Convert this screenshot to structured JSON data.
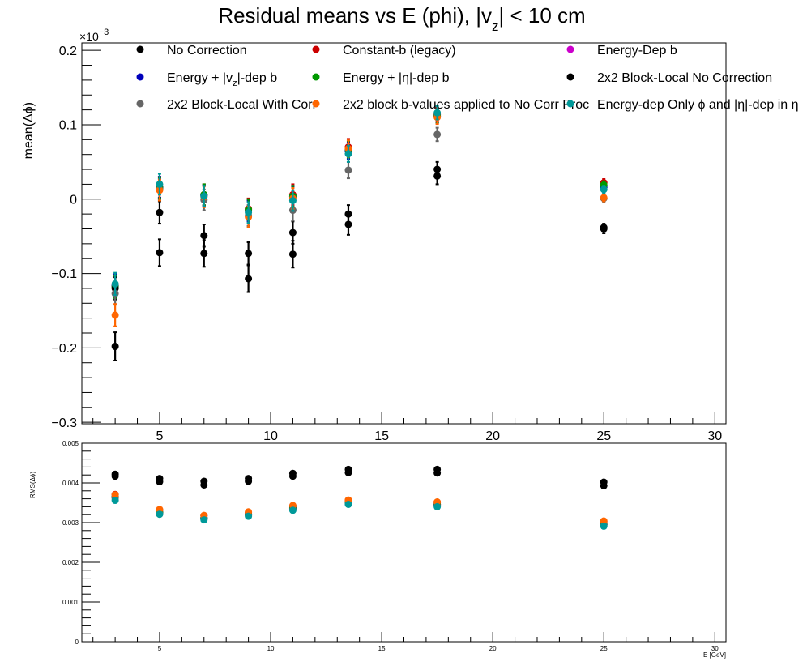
{
  "chart_data": [
    {
      "type": "scatter",
      "title": "Residual means vs E (phi), |v_z| < 10 cm",
      "title_parts": {
        "pre": "Residual means vs E (phi), |v",
        "sub": "z",
        "post": "| < 10 cm"
      },
      "ylabel": "mean(Δϕ)",
      "y_multiplier": "×10",
      "y_multiplier_exp": "−3",
      "xlim": [
        1.5,
        30.5
      ],
      "ylim": [
        -0.302,
        0.21
      ],
      "xticks": [
        5,
        10,
        15,
        20,
        25,
        30
      ],
      "yticks": [
        {
          "v": 0.2,
          "label": "0.2"
        },
        {
          "v": 0.1,
          "label": "0.1"
        },
        {
          "v": 0.0,
          "label": "0"
        },
        {
          "v": -0.1,
          "label": "−0.1"
        },
        {
          "v": -0.2,
          "label": "−0.2"
        },
        {
          "v": -0.3,
          "label": "−0.3"
        }
      ],
      "grid": false,
      "legend_placement": "top",
      "x": [
        3,
        5,
        7,
        9,
        11,
        13.5,
        17.5,
        25
      ],
      "series": [
        {
          "name": "No Correction",
          "color": "#000000",
          "values": [
            -0.198,
            -0.072,
            -0.073,
            -0.107,
            -0.074,
            -0.034,
            0.031,
            -0.04
          ],
          "err": [
            0.019,
            0.018,
            0.018,
            0.018,
            0.018,
            0.014,
            0.011,
            0.006
          ]
        },
        {
          "name": "Constant-b (legacy)",
          "color": "#cc0000",
          "values": [
            -0.117,
            0.016,
            0.006,
            -0.013,
            0.006,
            0.07,
            0.114,
            0.022
          ],
          "err": [
            0.015,
            0.014,
            0.014,
            0.014,
            0.014,
            0.011,
            0.009,
            0.005
          ]
        },
        {
          "name": "Energy-Dep b",
          "color": "#cc00cc",
          "values": [
            -0.117,
            0.014,
            0.005,
            -0.015,
            0.004,
            0.066,
            0.112,
            0.018
          ],
          "err": [
            0.015,
            0.014,
            0.014,
            0.014,
            0.014,
            0.011,
            0.009,
            0.005
          ]
        },
        {
          "name": "Energy + |v_z|-dep b",
          "name_parts": {
            "pre": "Energy + |v",
            "sub": "z",
            "post": "|-dep b"
          },
          "color": "#0000bb",
          "values": [
            -0.116,
            0.016,
            0.005,
            -0.016,
            0.003,
            0.065,
            0.111,
            0.016
          ],
          "err": [
            0.015,
            0.014,
            0.014,
            0.014,
            0.014,
            0.011,
            0.009,
            0.005
          ]
        },
        {
          "name": "Energy + |η|-dep b",
          "color": "#009900",
          "values": [
            -0.118,
            0.015,
            0.006,
            -0.014,
            0.004,
            0.067,
            0.112,
            0.019
          ],
          "err": [
            0.015,
            0.014,
            0.014,
            0.014,
            0.014,
            0.011,
            0.009,
            0.005
          ]
        },
        {
          "name": "2x2 Block-Local No Correction",
          "color": "#000000",
          "values": [
            -0.12,
            -0.018,
            -0.049,
            -0.073,
            -0.045,
            -0.02,
            0.04,
            -0.038
          ],
          "err": [
            0.015,
            0.015,
            0.015,
            0.015,
            0.015,
            0.012,
            0.01,
            0.005
          ]
        },
        {
          "name": "2x2 Block-Local With Corr",
          "color": "#666666",
          "values": [
            -0.127,
            0.013,
            -0.001,
            -0.022,
            -0.015,
            0.039,
            0.087,
            0.001
          ],
          "err": [
            0.015,
            0.014,
            0.014,
            0.014,
            0.014,
            0.011,
            0.009,
            0.005
          ]
        },
        {
          "name": "2x2 block b-values applied to No Corr Proc",
          "color": "#ff6600",
          "values": [
            -0.156,
            0.012,
            0.003,
            -0.024,
            0.001,
            0.068,
            0.11,
            0.002
          ],
          "err": [
            0.015,
            0.014,
            0.014,
            0.014,
            0.014,
            0.011,
            0.009,
            0.005
          ]
        },
        {
          "name": "Energy-dep Only ϕ and |η|-dep in η",
          "color": "#009999",
          "values": [
            -0.114,
            0.02,
            0.004,
            -0.018,
            -0.002,
            0.061,
            0.116,
            0.013
          ],
          "err": [
            0.015,
            0.014,
            0.014,
            0.014,
            0.014,
            0.011,
            0.009,
            0.005
          ]
        }
      ]
    },
    {
      "type": "scatter",
      "ylabel": "RMS(Δϕ)",
      "xlabel": "E [GeV]",
      "xlim": [
        1.5,
        30.5
      ],
      "ylim": [
        0,
        0.005
      ],
      "xticks": [
        5,
        10,
        15,
        20,
        25,
        30
      ],
      "yticks": [
        {
          "v": 0,
          "label": "0"
        },
        {
          "v": 0.001,
          "label": "0.001"
        },
        {
          "v": 0.002,
          "label": "0.002"
        },
        {
          "v": 0.003,
          "label": "0.003"
        },
        {
          "v": 0.004,
          "label": "0.004"
        },
        {
          "v": 0.005,
          "label": "0.005"
        }
      ],
      "grid": false,
      "x": [
        3,
        5,
        7,
        9,
        11,
        13.5,
        17.5,
        25
      ],
      "series": [
        {
          "name": "No Correction",
          "color": "#000000",
          "values": [
            0.00417,
            0.00403,
            0.00395,
            0.00404,
            0.00417,
            0.00426,
            0.00425,
            0.00393
          ]
        },
        {
          "name": "Constant-b (legacy)",
          "color": "#cc0000",
          "values": [
            0.00371,
            0.00332,
            0.00317,
            0.00325,
            0.00342,
            0.00356,
            0.00351,
            0.00302
          ]
        },
        {
          "name": "Energy-Dep b",
          "color": "#cc00cc",
          "values": [
            0.00365,
            0.00326,
            0.00312,
            0.00321,
            0.00337,
            0.00351,
            0.00346,
            0.00296
          ]
        },
        {
          "name": "Energy + |v_z|-dep b",
          "color": "#0000bb",
          "values": [
            0.00364,
            0.00325,
            0.00311,
            0.0032,
            0.00336,
            0.0035,
            0.00345,
            0.00295
          ]
        },
        {
          "name": "Energy + |η|-dep b",
          "color": "#009900",
          "values": [
            0.00365,
            0.00326,
            0.00312,
            0.00321,
            0.00337,
            0.00351,
            0.00346,
            0.00296
          ]
        },
        {
          "name": "2x2 Block-Local No Correction",
          "color": "#000000",
          "values": [
            0.00422,
            0.00411,
            0.00404,
            0.00411,
            0.00424,
            0.00434,
            0.00434,
            0.00402
          ]
        },
        {
          "name": "2x2 Block-Local With Corr",
          "color": "#666666",
          "values": [
            0.00362,
            0.00322,
            0.00309,
            0.00318,
            0.00333,
            0.00348,
            0.00343,
            0.00293
          ]
        },
        {
          "name": "2x2 block b-values applied to No Corr Proc",
          "color": "#ff6600",
          "values": [
            0.0037,
            0.00333,
            0.00318,
            0.00327,
            0.00343,
            0.00357,
            0.00352,
            0.00304
          ]
        },
        {
          "name": "Energy-dep Only ϕ and |η|-dep in η",
          "color": "#009999",
          "values": [
            0.00356,
            0.00321,
            0.00307,
            0.00316,
            0.00331,
            0.00346,
            0.0034,
            0.00291
          ]
        }
      ]
    }
  ]
}
